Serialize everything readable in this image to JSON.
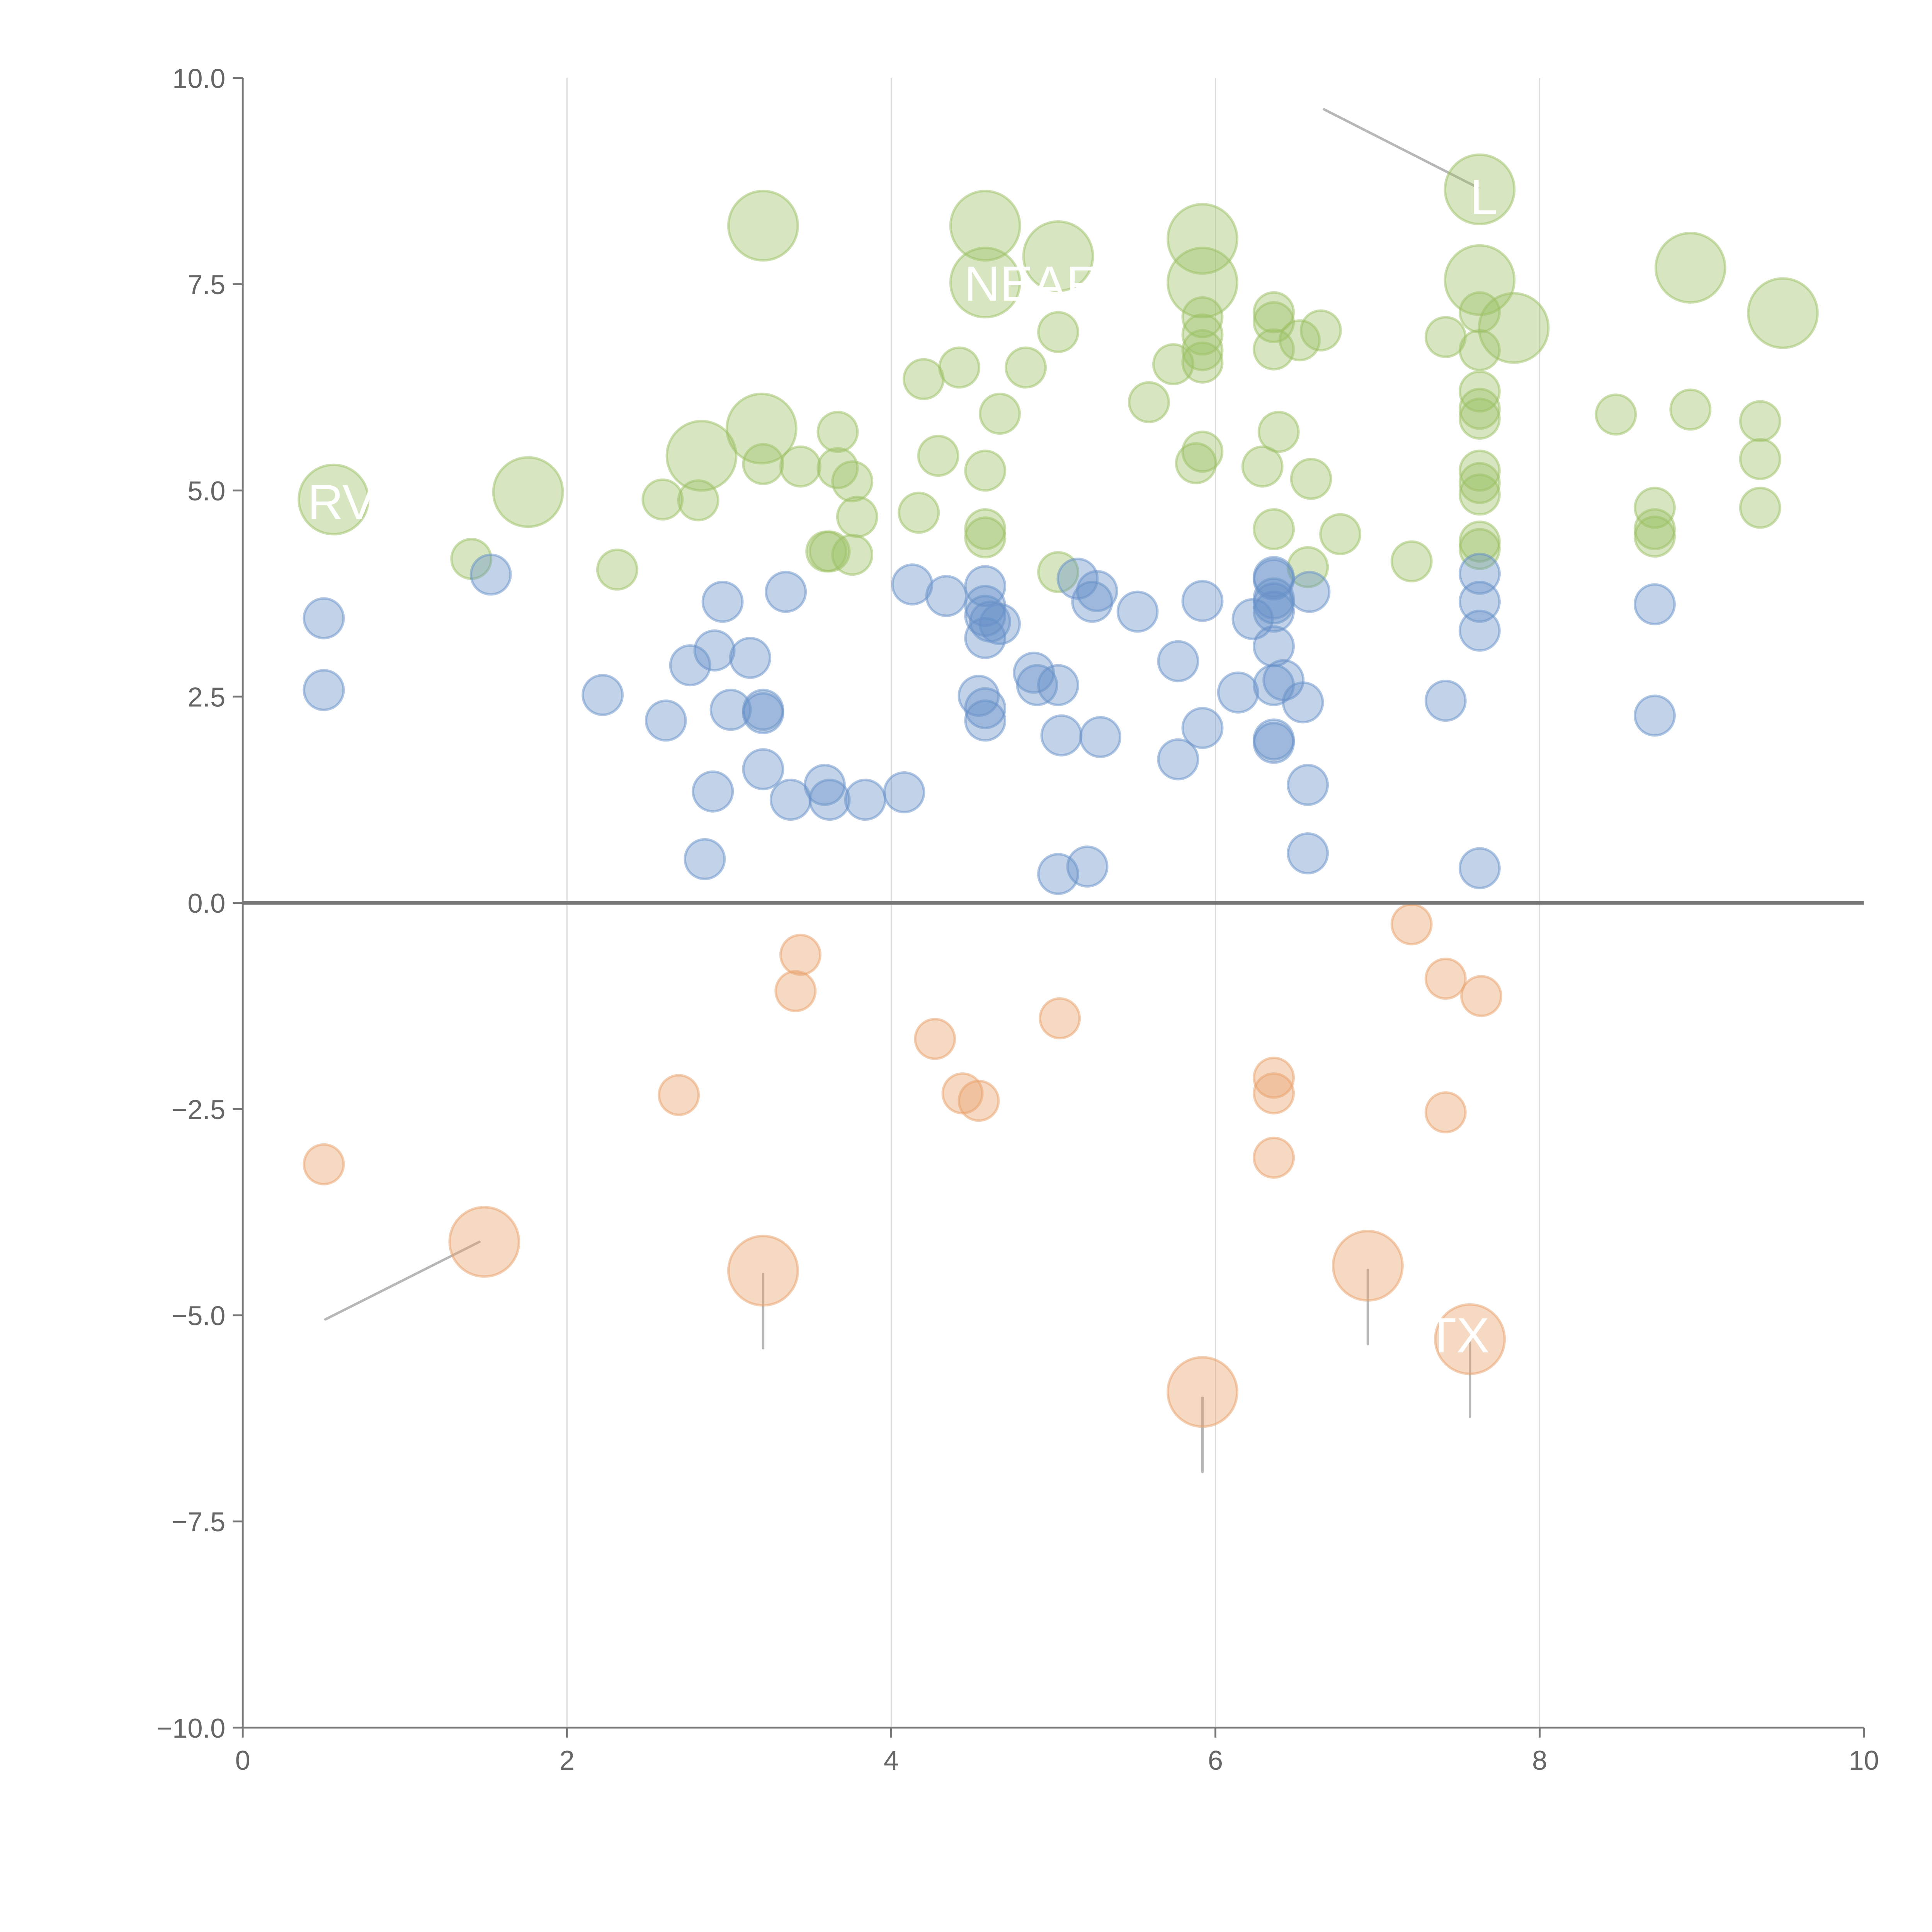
{
  "chart_data": {
    "type": "scatter",
    "title": "",
    "xlabel": "",
    "ylabel": "",
    "xlim": [
      0,
      10
    ],
    "ylim": [
      -10,
      10
    ],
    "x_ticks": [
      "0",
      "2",
      "4",
      "6",
      "8",
      "10"
    ],
    "x_tick_values": [
      0,
      2,
      4,
      6,
      8,
      10
    ],
    "y_ticks": [
      "10.0",
      "7.5",
      "5.0",
      "2.5",
      "0.0",
      "−2.5",
      "−5.0",
      "−7.5",
      "−10.0"
    ],
    "y_tick_values": [
      10,
      7.5,
      5,
      2.5,
      0,
      -2.5,
      -5,
      -7.5,
      -10
    ],
    "grid": "vertical",
    "zero_line": true,
    "colors": {
      "green": "#9cc063",
      "blue": "#6690c8",
      "orange": "#e8a06a",
      "leader": "#999999"
    },
    "series": [
      {
        "name": "green",
        "color": "#9cc063",
        "points": [
          [
            3.21,
            8.21,
            2
          ],
          [
            4.58,
            8.21,
            2
          ],
          [
            5.03,
            7.84,
            2
          ],
          [
            5.92,
            8.05,
            2
          ],
          [
            5.92,
            7.52,
            2
          ],
          [
            4.58,
            7.52,
            2
          ],
          [
            7.63,
            8.65,
            2
          ],
          [
            7.63,
            7.55,
            2
          ],
          [
            7.84,
            6.97,
            2
          ],
          [
            8.93,
            7.7,
            2
          ],
          [
            9.5,
            7.15,
            2
          ],
          [
            3.2,
            5.75,
            2
          ],
          [
            2.83,
            5.42,
            2
          ],
          [
            1.76,
            4.98,
            2
          ],
          [
            0.56,
            4.89,
            2
          ],
          [
            1.41,
            4.17,
            1
          ],
          [
            2.31,
            4.04,
            1
          ],
          [
            2.59,
            4.89,
            1
          ],
          [
            2.81,
            4.88,
            1
          ],
          [
            3.21,
            5.32,
            1
          ],
          [
            3.44,
            5.29,
            1
          ],
          [
            3.67,
            5.71,
            1
          ],
          [
            3.67,
            5.27,
            1
          ],
          [
            3.76,
            5.11,
            1
          ],
          [
            3.79,
            4.68,
            1
          ],
          [
            3.6,
            4.26,
            1
          ],
          [
            3.62,
            4.26,
            1
          ],
          [
            3.76,
            4.22,
            1
          ],
          [
            4.17,
            4.73,
            1
          ],
          [
            4.2,
            6.35,
            1
          ],
          [
            4.29,
            5.42,
            1
          ],
          [
            4.42,
            6.49,
            1
          ],
          [
            4.58,
            5.24,
            1
          ],
          [
            4.58,
            4.53,
            1
          ],
          [
            4.58,
            4.43,
            1
          ],
          [
            4.67,
            5.93,
            1
          ],
          [
            4.83,
            6.49,
            1
          ],
          [
            5.03,
            6.92,
            1
          ],
          [
            5.03,
            4.01,
            1
          ],
          [
            5.59,
            6.07,
            1
          ],
          [
            5.74,
            6.53,
            1
          ],
          [
            5.88,
            5.33,
            1
          ],
          [
            5.92,
            5.47,
            1
          ],
          [
            5.92,
            7.1,
            1
          ],
          [
            5.92,
            6.89,
            1
          ],
          [
            5.92,
            6.7,
            1
          ],
          [
            5.92,
            6.55,
            1
          ],
          [
            6.29,
            5.29,
            1
          ],
          [
            6.36,
            7.16,
            1
          ],
          [
            6.36,
            7.04,
            1
          ],
          [
            6.36,
            6.71,
            1
          ],
          [
            6.39,
            5.71,
            1
          ],
          [
            6.36,
            4.53,
            1
          ],
          [
            6.52,
            6.82,
            1
          ],
          [
            6.59,
            5.14,
            1
          ],
          [
            6.57,
            4.07,
            1
          ],
          [
            6.65,
            6.94,
            1
          ],
          [
            6.77,
            4.47,
            1
          ],
          [
            7.21,
            4.14,
            1
          ],
          [
            7.42,
            6.86,
            1
          ],
          [
            7.63,
            7.16,
            1
          ],
          [
            7.63,
            6.7,
            1
          ],
          [
            7.63,
            6.2,
            1
          ],
          [
            7.63,
            5.99,
            1
          ],
          [
            7.63,
            5.87,
            1
          ],
          [
            7.63,
            5.24,
            1
          ],
          [
            7.63,
            5.09,
            1
          ],
          [
            7.63,
            4.95,
            1
          ],
          [
            7.63,
            4.38,
            1
          ],
          [
            7.63,
            4.29,
            1
          ],
          [
            8.47,
            5.92,
            1
          ],
          [
            8.93,
            5.98,
            1
          ],
          [
            8.71,
            4.79,
            1
          ],
          [
            8.71,
            4.53,
            1
          ],
          [
            8.71,
            4.44,
            1
          ],
          [
            9.36,
            5.84,
            1
          ],
          [
            9.36,
            5.38,
            1
          ],
          [
            9.36,
            4.79,
            1
          ]
        ]
      },
      {
        "name": "blue",
        "color": "#6690c8",
        "points": [
          [
            0.5,
            3.45,
            1
          ],
          [
            0.5,
            2.58,
            1
          ],
          [
            1.53,
            3.98,
            1
          ],
          [
            2.22,
            2.52,
            1
          ],
          [
            2.61,
            2.21,
            1
          ],
          [
            2.76,
            2.88,
            1
          ],
          [
            2.85,
            0.53,
            1
          ],
          [
            2.91,
            3.06,
            1
          ],
          [
            2.9,
            1.35,
            1
          ],
          [
            2.96,
            3.65,
            1
          ],
          [
            3.01,
            2.34,
            1
          ],
          [
            3.13,
            2.97,
            1
          ],
          [
            3.21,
            2.34,
            1
          ],
          [
            3.21,
            2.3,
            1
          ],
          [
            3.21,
            1.62,
            1
          ],
          [
            3.35,
            3.77,
            1
          ],
          [
            3.38,
            1.25,
            1
          ],
          [
            3.59,
            1.43,
            1
          ],
          [
            3.62,
            1.25,
            1
          ],
          [
            3.84,
            1.25,
            1
          ],
          [
            4.08,
            1.34,
            1
          ],
          [
            4.13,
            3.86,
            1
          ],
          [
            4.34,
            3.72,
            1
          ],
          [
            4.54,
            2.51,
            1
          ],
          [
            4.58,
            3.84,
            1
          ],
          [
            4.58,
            3.6,
            1
          ],
          [
            4.58,
            3.48,
            1
          ],
          [
            4.58,
            3.21,
            1
          ],
          [
            4.58,
            2.36,
            1
          ],
          [
            4.58,
            2.21,
            1
          ],
          [
            4.61,
            3.41,
            1
          ],
          [
            4.67,
            3.38,
            1
          ],
          [
            4.88,
            2.79,
            1
          ],
          [
            4.9,
            2.64,
            1
          ],
          [
            5.03,
            2.64,
            1
          ],
          [
            5.05,
            2.03,
            1
          ],
          [
            5.03,
            0.35,
            1
          ],
          [
            5.15,
            3.93,
            1
          ],
          [
            5.21,
            0.44,
            1
          ],
          [
            5.24,
            3.65,
            1
          ],
          [
            5.27,
            3.78,
            1
          ],
          [
            5.29,
            2.01,
            1
          ],
          [
            5.52,
            3.53,
            1
          ],
          [
            5.77,
            2.93,
            1
          ],
          [
            5.77,
            1.74,
            1
          ],
          [
            5.92,
            3.66,
            1
          ],
          [
            5.92,
            2.12,
            1
          ],
          [
            6.14,
            2.55,
            1
          ],
          [
            6.23,
            3.44,
            1
          ],
          [
            6.36,
            3.95,
            1
          ],
          [
            6.36,
            3.92,
            1
          ],
          [
            6.36,
            3.69,
            1
          ],
          [
            6.36,
            3.63,
            1
          ],
          [
            6.36,
            3.53,
            1
          ],
          [
            6.36,
            3.11,
            1
          ],
          [
            6.36,
            2.64,
            1
          ],
          [
            6.42,
            2.7,
            1
          ],
          [
            6.36,
            1.98,
            1
          ],
          [
            6.36,
            1.94,
            1
          ],
          [
            6.54,
            2.43,
            1
          ],
          [
            6.58,
            3.77,
            1
          ],
          [
            6.57,
            1.43,
            1
          ],
          [
            6.57,
            0.6,
            1
          ],
          [
            7.42,
            2.45,
            1
          ],
          [
            7.63,
            3.99,
            1
          ],
          [
            7.63,
            3.65,
            1
          ],
          [
            7.63,
            3.3,
            1
          ],
          [
            7.63,
            0.42,
            1
          ],
          [
            8.71,
            3.62,
            1
          ],
          [
            8.71,
            2.27,
            1
          ]
        ]
      },
      {
        "name": "orange",
        "color": "#e8a06a",
        "points": [
          [
            0.5,
            -3.17,
            1
          ],
          [
            2.69,
            -2.33,
            1
          ],
          [
            3.44,
            -0.63,
            1
          ],
          [
            3.41,
            -1.07,
            1
          ],
          [
            4.27,
            -1.65,
            1
          ],
          [
            4.44,
            -2.31,
            1
          ],
          [
            4.54,
            -2.4,
            1
          ],
          [
            5.04,
            -1.4,
            1
          ],
          [
            6.36,
            -2.12,
            1
          ],
          [
            6.36,
            -2.31,
            1
          ],
          [
            6.36,
            -3.09,
            1
          ],
          [
            7.21,
            -0.26,
            1
          ],
          [
            7.42,
            -0.92,
            1
          ],
          [
            7.42,
            -2.54,
            1
          ],
          [
            7.64,
            -1.13,
            1
          ],
          [
            1.49,
            -4.11,
            2
          ],
          [
            3.21,
            -4.46,
            2
          ],
          [
            6.94,
            -4.4,
            2
          ],
          [
            7.57,
            -5.29,
            2
          ],
          [
            5.92,
            -5.93,
            2
          ]
        ]
      }
    ],
    "leader_lines": [
      [
        [
          6.67,
          9.62
        ],
        [
          7.62,
          8.67
        ]
      ],
      [
        [
          0.51,
          -5.05
        ],
        [
          1.46,
          -4.11
        ]
      ],
      [
        [
          3.21,
          -4.5
        ],
        [
          3.21,
          -5.4
        ]
      ],
      [
        [
          6.94,
          -4.45
        ],
        [
          6.94,
          -5.35
        ]
      ],
      [
        [
          7.57,
          -5.33
        ],
        [
          7.57,
          -6.23
        ]
      ],
      [
        [
          5.92,
          -6.0
        ],
        [
          5.92,
          -6.9
        ]
      ]
    ],
    "annotations": [
      {
        "text": "RV",
        "x": 0.4,
        "y": 4.65
      },
      {
        "text": "NEAF",
        "x": 4.45,
        "y": 7.3
      },
      {
        "text": "L",
        "x": 7.57,
        "y": 8.35
      },
      {
        "text": "TX",
        "x": 7.3,
        "y": -5.45
      }
    ]
  }
}
